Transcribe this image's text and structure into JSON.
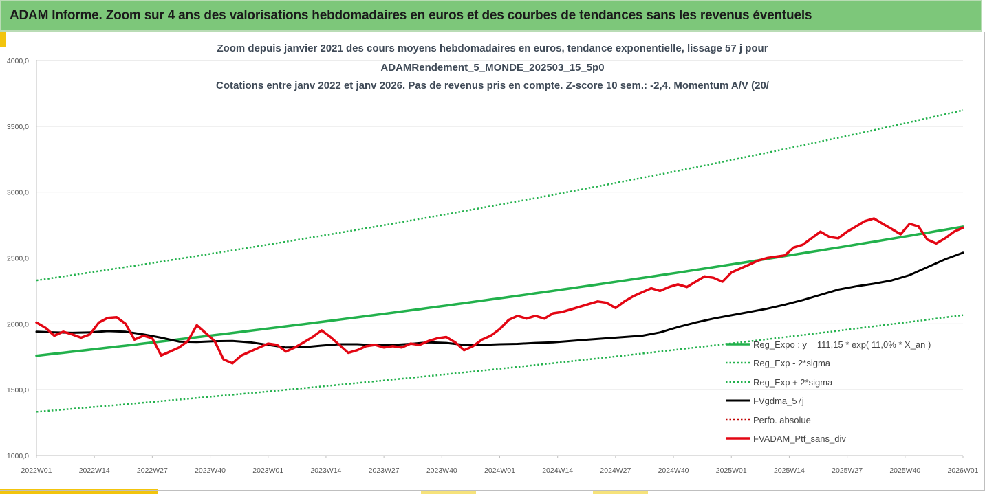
{
  "header": {
    "title": "ADAM Informe. Zoom sur 4 ans des valorisations hebdomadaires en euros et des courbes de tendances sans les revenus éventuels"
  },
  "colors": {
    "header_bg": "#7dc77a",
    "trend": "#22b14c",
    "band": "#22b14c",
    "fvgdma": "#000000",
    "perfo": "#c00000",
    "portfolio": "#e30613"
  },
  "chart_data": {
    "type": "line",
    "title_lines": [
      "Zoom depuis janvier 2021 des cours moyens hebdomadaires  en euros, tendance exponentielle, lissage 57 j pour",
      "ADAMRendement_5_MONDE_202503_15_5p0",
      "Cotations entre janv 2022 et janv 2026. Pas de revenus pris en compte. Z-score 10 sem.: -2,4. Momentum A/V (20/"
    ],
    "x_tick_labels": [
      "2022W01",
      "2022W14",
      "2022W27",
      "2022W40",
      "2023W01",
      "2023W14",
      "2023W27",
      "2023W40",
      "2024W01",
      "2024W14",
      "2024W27",
      "2024W40",
      "2025W01",
      "2025W14",
      "2025W27",
      "2025W40",
      "2026W01"
    ],
    "x_range_weeks": [
      0,
      208
    ],
    "y_tick_labels": [
      "4000,0",
      "3500,0",
      "3000,0",
      "2500,0",
      "2000,0",
      "1500,0",
      "1000,0"
    ],
    "y_ticks": [
      4000,
      3500,
      3000,
      2500,
      2000,
      1500,
      1000
    ],
    "ylim": [
      1000,
      4000
    ],
    "grid": "horizontal",
    "legend_position": "right",
    "series": [
      {
        "name": "Reg_Expo : y = 111,15 * exp( 11,0% *  X_an )",
        "style": "solid-green",
        "x": [
          0,
          208
        ],
        "values": [
          1758,
          2738
        ],
        "curve": "exponential"
      },
      {
        "name": "Reg_Exp - 2*sigma",
        "style": "dotted-green",
        "x": [
          0,
          208
        ],
        "values": [
          1332,
          2066
        ],
        "curve": "exponential"
      },
      {
        "name": "Reg_Exp + 2*sigma",
        "style": "dotted-green",
        "x": [
          0,
          208
        ],
        "values": [
          2330,
          3622
        ],
        "curve": "exponential"
      },
      {
        "name": "FVgdma_57j",
        "style": "solid-black",
        "x": [
          0,
          4,
          8,
          12,
          16,
          20,
          24,
          28,
          32,
          36,
          40,
          44,
          48,
          52,
          56,
          60,
          64,
          68,
          72,
          76,
          80,
          84,
          88,
          92,
          96,
          100,
          104,
          108,
          112,
          116,
          120,
          124,
          128,
          132,
          136,
          140,
          144,
          148,
          152,
          156,
          160,
          164,
          168,
          172,
          176,
          180,
          184,
          188,
          192,
          196,
          200,
          204,
          208
        ],
        "values": [
          1940,
          1935,
          1932,
          1935,
          1945,
          1940,
          1920,
          1895,
          1865,
          1862,
          1868,
          1870,
          1860,
          1840,
          1820,
          1822,
          1835,
          1845,
          1845,
          1838,
          1840,
          1848,
          1860,
          1855,
          1840,
          1840,
          1845,
          1848,
          1855,
          1860,
          1870,
          1880,
          1890,
          1900,
          1910,
          1935,
          1975,
          2010,
          2040,
          2065,
          2090,
          2115,
          2145,
          2180,
          2220,
          2260,
          2285,
          2305,
          2330,
          2370,
          2430,
          2490,
          2540
        ]
      },
      {
        "name": "Perfo. absolue",
        "style": "dotted-red",
        "x": [],
        "values": []
      },
      {
        "name": "FVADAM_Ptf_sans_div",
        "style": "solid-red",
        "x": [
          0,
          2,
          4,
          6,
          8,
          10,
          12,
          14,
          16,
          18,
          20,
          22,
          24,
          26,
          28,
          30,
          32,
          34,
          36,
          38,
          40,
          42,
          44,
          46,
          48,
          50,
          52,
          54,
          56,
          58,
          60,
          62,
          64,
          66,
          68,
          70,
          72,
          74,
          76,
          78,
          80,
          82,
          84,
          86,
          88,
          90,
          92,
          94,
          96,
          98,
          100,
          102,
          104,
          106,
          108,
          110,
          112,
          114,
          116,
          118,
          120,
          122,
          124,
          126,
          128,
          130,
          132,
          134,
          136,
          138,
          140,
          142,
          144,
          146,
          148,
          150,
          152,
          154,
          156,
          158,
          160,
          162,
          164,
          166,
          168,
          170,
          172,
          174,
          176,
          178,
          180,
          182,
          184,
          186,
          188,
          190,
          192,
          194,
          196,
          198,
          200,
          202,
          204,
          206,
          208
        ],
        "values": [
          2010,
          1970,
          1910,
          1940,
          1920,
          1895,
          1920,
          2010,
          2045,
          2050,
          2000,
          1880,
          1910,
          1890,
          1760,
          1790,
          1820,
          1870,
          1990,
          1930,
          1870,
          1730,
          1700,
          1760,
          1790,
          1820,
          1850,
          1840,
          1790,
          1820,
          1860,
          1900,
          1950,
          1900,
          1840,
          1780,
          1800,
          1830,
          1840,
          1820,
          1830,
          1820,
          1850,
          1840,
          1870,
          1890,
          1900,
          1860,
          1800,
          1830,
          1880,
          1910,
          1960,
          2030,
          2060,
          2040,
          2060,
          2040,
          2080,
          2090,
          2110,
          2130,
          2150,
          2170,
          2160,
          2120,
          2170,
          2210,
          2240,
          2270,
          2250,
          2280,
          2300,
          2280,
          2320,
          2360,
          2350,
          2320,
          2390,
          2420,
          2450,
          2480,
          2500,
          2510,
          2520,
          2580,
          2600,
          2650,
          2700,
          2660,
          2650,
          2700,
          2740,
          2780,
          2800,
          2760,
          2720,
          2680,
          2760,
          2740,
          2640,
          2610,
          2650,
          2700,
          2730
        ]
      }
    ]
  }
}
